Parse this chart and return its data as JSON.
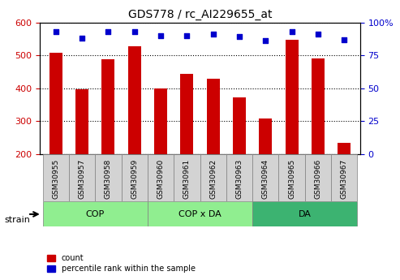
{
  "title": "GDS778 / rc_AI229655_at",
  "samples": [
    "GSM30955",
    "GSM30957",
    "GSM30958",
    "GSM30959",
    "GSM30960",
    "GSM30961",
    "GSM30962",
    "GSM30963",
    "GSM30964",
    "GSM30965",
    "GSM30966",
    "GSM30967"
  ],
  "counts": [
    507,
    397,
    487,
    527,
    400,
    443,
    430,
    372,
    307,
    547,
    490,
    233
  ],
  "percentile_ranks": [
    93,
    88,
    93,
    93,
    90,
    90,
    91,
    89,
    86,
    93,
    91,
    87
  ],
  "groups": [
    {
      "label": "COP",
      "start": 0,
      "end": 3,
      "color": "#90ee90"
    },
    {
      "label": "COP x DA",
      "start": 4,
      "end": 7,
      "color": "#90ee90"
    },
    {
      "label": "DA",
      "start": 8,
      "end": 11,
      "color": "#32cd32"
    }
  ],
  "group_bg_colors": [
    "#d0f0d0",
    "#d0f0d0",
    "#90ee90"
  ],
  "ylim_left": [
    200,
    600
  ],
  "ylim_right": [
    0,
    100
  ],
  "yticks_left": [
    200,
    300,
    400,
    500,
    600
  ],
  "yticks_right": [
    0,
    25,
    50,
    75,
    100
  ],
  "bar_color": "#cc0000",
  "dot_color": "#0000cc",
  "bar_bottom": 200,
  "ylabel_left_color": "#cc0000",
  "ylabel_right_color": "#0000cc",
  "legend_count_label": "count",
  "legend_pct_label": "percentile rank within the sample",
  "strain_label": "strain",
  "grid_color": "#000000"
}
